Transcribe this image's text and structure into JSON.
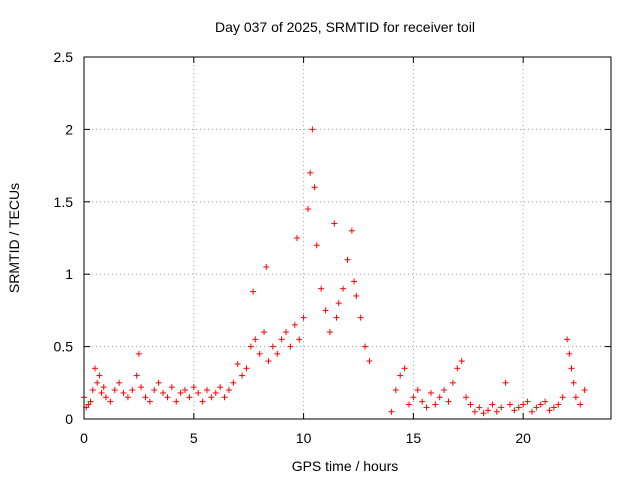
{
  "chart_data": {
    "type": "scatter",
    "title": "Day 037 of 2025, SRMTID for receiver toil",
    "xlabel": "GPS time / hours",
    "ylabel": "SRMTID / TECUs",
    "xlim": [
      0,
      24
    ],
    "ylim": [
      0,
      2.5
    ],
    "xticks": [
      0,
      5,
      10,
      15,
      20
    ],
    "xtick_labels": [
      "0",
      "5",
      "10",
      "15",
      "20"
    ],
    "yticks": [
      0,
      0.5,
      1,
      1.5,
      2,
      2.5
    ],
    "ytick_labels": [
      "0",
      "0.5",
      "1",
      "1.5",
      "2",
      "2.5"
    ],
    "grid": true,
    "marker": "+",
    "color": "#ff0000",
    "series": [
      {
        "name": "SRMTID",
        "x": [
          0.0,
          0.1,
          0.2,
          0.3,
          0.4,
          0.5,
          0.6,
          0.7,
          0.8,
          0.9,
          1.0,
          1.2,
          1.4,
          1.6,
          1.8,
          2.0,
          2.2,
          2.4,
          2.5,
          2.6,
          2.8,
          3.0,
          3.2,
          3.4,
          3.6,
          3.8,
          4.0,
          4.2,
          4.4,
          4.6,
          4.8,
          5.0,
          5.2,
          5.4,
          5.6,
          5.8,
          6.0,
          6.2,
          6.4,
          6.6,
          6.8,
          7.0,
          7.2,
          7.4,
          7.6,
          7.7,
          7.8,
          8.0,
          8.2,
          8.3,
          8.4,
          8.6,
          8.8,
          9.0,
          9.2,
          9.4,
          9.6,
          9.7,
          9.8,
          10.0,
          10.2,
          10.3,
          10.4,
          10.5,
          10.6,
          10.8,
          11.0,
          11.2,
          11.4,
          11.5,
          11.6,
          11.8,
          12.0,
          12.2,
          12.3,
          12.4,
          12.6,
          12.8,
          13.0,
          14.0,
          14.2,
          14.4,
          14.6,
          14.8,
          15.0,
          15.2,
          15.4,
          15.6,
          15.8,
          16.0,
          16.2,
          16.4,
          16.6,
          16.8,
          17.0,
          17.2,
          17.4,
          17.6,
          17.8,
          18.0,
          18.2,
          18.4,
          18.6,
          18.8,
          19.0,
          19.2,
          19.4,
          19.6,
          19.8,
          20.0,
          20.2,
          20.4,
          20.6,
          20.8,
          21.0,
          21.2,
          21.4,
          21.6,
          21.8,
          22.0,
          22.1,
          22.2,
          22.3,
          22.4,
          22.6,
          22.8
        ],
        "y": [
          0.15,
          0.08,
          0.1,
          0.12,
          0.2,
          0.35,
          0.25,
          0.3,
          0.18,
          0.22,
          0.15,
          0.12,
          0.2,
          0.25,
          0.18,
          0.15,
          0.2,
          0.3,
          0.45,
          0.22,
          0.15,
          0.12,
          0.2,
          0.25,
          0.18,
          0.15,
          0.22,
          0.12,
          0.18,
          0.2,
          0.15,
          0.22,
          0.18,
          0.12,
          0.2,
          0.15,
          0.18,
          0.22,
          0.15,
          0.2,
          0.25,
          0.38,
          0.3,
          0.35,
          0.5,
          0.88,
          0.55,
          0.45,
          0.6,
          1.05,
          0.4,
          0.5,
          0.45,
          0.55,
          0.6,
          0.5,
          0.65,
          1.25,
          0.55,
          0.7,
          1.45,
          1.7,
          2.0,
          1.6,
          1.2,
          0.9,
          0.75,
          0.6,
          1.35,
          0.7,
          0.8,
          0.9,
          1.1,
          1.3,
          0.95,
          0.85,
          0.7,
          0.5,
          0.4,
          0.05,
          0.2,
          0.3,
          0.35,
          0.1,
          0.15,
          0.2,
          0.12,
          0.08,
          0.18,
          0.1,
          0.15,
          0.2,
          0.12,
          0.25,
          0.35,
          0.4,
          0.15,
          0.1,
          0.05,
          0.08,
          0.04,
          0.06,
          0.1,
          0.05,
          0.08,
          0.25,
          0.1,
          0.06,
          0.08,
          0.1,
          0.12,
          0.05,
          0.08,
          0.1,
          0.12,
          0.06,
          0.08,
          0.1,
          0.15,
          0.55,
          0.45,
          0.35,
          0.25,
          0.15,
          0.1,
          0.2
        ]
      }
    ]
  }
}
